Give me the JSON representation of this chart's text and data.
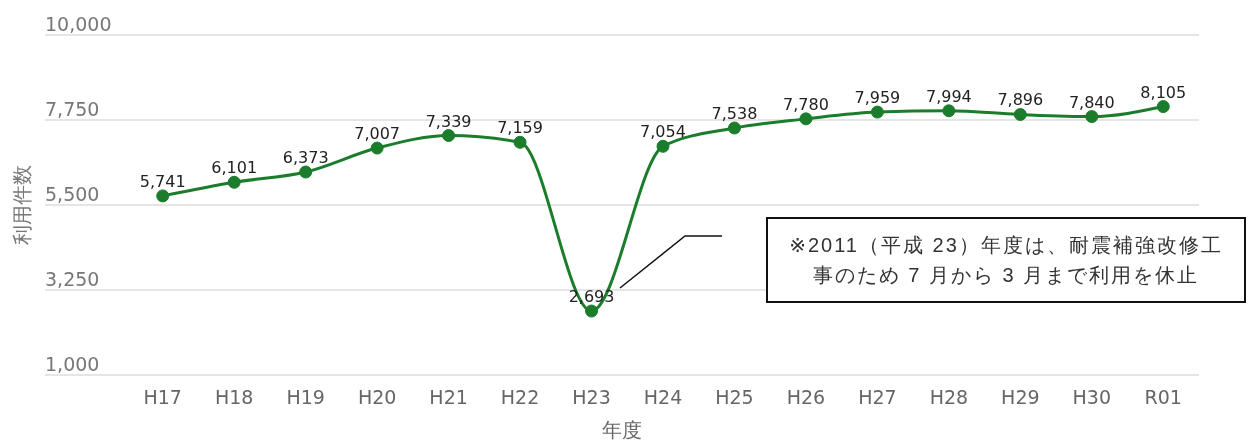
{
  "chart_data": {
    "type": "line",
    "xlabel": "年度",
    "ylabel": "利用件数",
    "categories": [
      "H17",
      "H18",
      "H19",
      "H20",
      "H21",
      "H22",
      "H23",
      "H24",
      "H25",
      "H26",
      "H27",
      "H28",
      "H29",
      "H30",
      "R01"
    ],
    "series": [
      {
        "color": "#1b7d2b",
        "values": [
          5741,
          6101,
          6373,
          7007,
          7339,
          7159,
          2693,
          7054,
          7538,
          7780,
          7959,
          7994,
          7896,
          7840,
          8105
        ],
        "value_labels": [
          "5,741",
          "6,101",
          "6,373",
          "7,007",
          "7,339",
          "7,159",
          "2,693",
          "7,054",
          "7,538",
          "7,780",
          "7,959",
          "7,994",
          "7,896",
          "7,840",
          "8,105"
        ]
      }
    ],
    "ylim": [
      1000,
      10000
    ],
    "yticks": [
      {
        "value": 1000,
        "label": "1,000"
      },
      {
        "value": 3250,
        "label": "3,250"
      },
      {
        "value": 5500,
        "label": "5,500"
      },
      {
        "value": 7750,
        "label": "7,750"
      },
      {
        "value": 10000,
        "label": "10,000"
      }
    ],
    "grid": "y",
    "marker": "circle",
    "annotations": [
      "※2011（平成 23）年度は、耐震補強改修工事のため 7 月から 3 月まで利用を休止"
    ]
  }
}
